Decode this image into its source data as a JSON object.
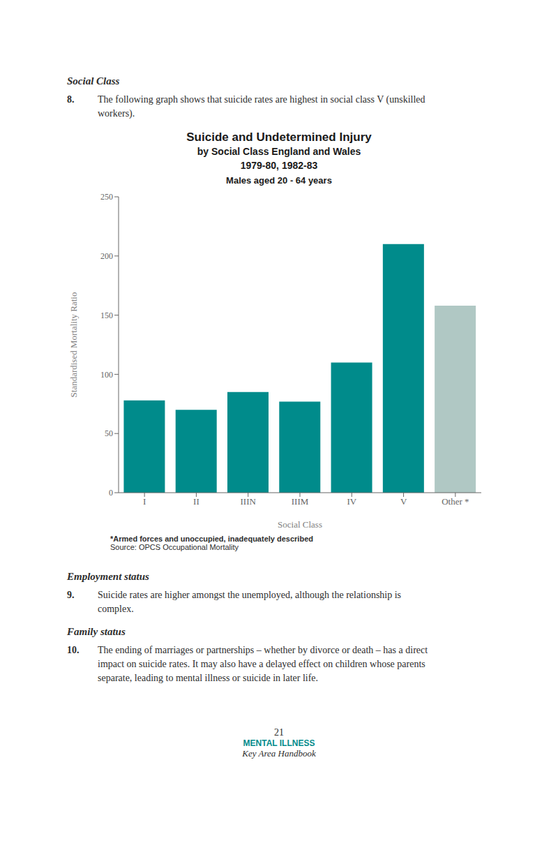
{
  "chart_data": {
    "type": "bar",
    "title": "Suicide and Undetermined Injury\nby Social Class  England and Wales\n1979-80, 1982-83",
    "subtitle": "Males aged 20 - 64 years",
    "categories": [
      "I",
      "II",
      "IIIN",
      "IIIM",
      "IV",
      "V",
      "Other *"
    ],
    "values": [
      78,
      70,
      85,
      77,
      110,
      210,
      158
    ],
    "colors": [
      "#008b8b",
      "#008b8b",
      "#008b8b",
      "#008b8b",
      "#008b8b",
      "#008b8b",
      "#b0c8c4"
    ],
    "xlabel": "Social Class",
    "ylabel": "Standardised Mortality Ratio",
    "ylim": [
      0,
      250
    ],
    "yticks": [
      0,
      50,
      100,
      150,
      200,
      250
    ],
    "grid": false,
    "annotations": [
      "Social Class",
      "8.",
      "The following graph shows that suicide rates are highest in social class V (unskilled",
      "workers).",
      "*Armed forces and unoccupied, inadequately described",
      "Source: OPCS Occupational Mortality",
      "Employment status",
      "9.",
      "Suicide rates are higher amongst the unemployed, although the relationship is",
      "complex.",
      "Family status",
      "10.",
      "The ending of marriages or partnerships – whether by divorce or death – has a direct",
      "impact on suicide rates. It may also have a delayed effect on children whose parents",
      "separate, leading to mental illness or suicide in later life.",
      "21",
      "MENTAL ILLNESS",
      "Key Area Handbook"
    ]
  }
}
